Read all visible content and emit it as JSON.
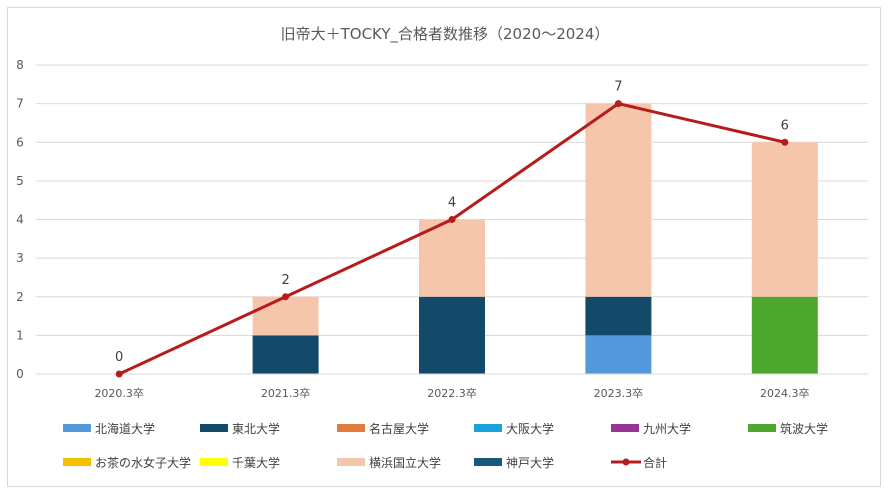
{
  "chart_data": {
    "type": "bar",
    "title": "旧帝大＋TOCKY_合格者数推移（2020～2024）",
    "categories": [
      "2020.3卒",
      "2021.3卒",
      "2022.3卒",
      "2023.3卒",
      "2024.3卒"
    ],
    "ylim": [
      0,
      8
    ],
    "yticks": [
      "0",
      "1",
      "2",
      "3",
      "4",
      "5",
      "6",
      "7",
      "8"
    ],
    "grid": true,
    "legend_position": "bottom",
    "series": [
      {
        "name": "北海道大学",
        "color": "#5599dd",
        "values": [
          0,
          0,
          0,
          1,
          0
        ]
      },
      {
        "name": "東北大学",
        "color": "#134a6a",
        "values": [
          0,
          1,
          2,
          1,
          0
        ]
      },
      {
        "name": "名古屋大学",
        "color": "#e37b3a",
        "values": [
          0,
          0,
          0,
          0,
          0
        ]
      },
      {
        "name": "大阪大学",
        "color": "#1ba1dd",
        "values": [
          0,
          0,
          0,
          0,
          0
        ]
      },
      {
        "name": "九州大学",
        "color": "#973596",
        "values": [
          0,
          0,
          0,
          0,
          0
        ]
      },
      {
        "name": "筑波大学",
        "color": "#4ea72e",
        "values": [
          0,
          0,
          0,
          0,
          2
        ]
      },
      {
        "name": "お茶の水女子大学",
        "color": "#f6c000",
        "values": [
          0,
          0,
          0,
          0,
          0
        ]
      },
      {
        "name": "千葉大学",
        "color": "#ffff00",
        "values": [
          0,
          0,
          0,
          0,
          0
        ]
      },
      {
        "name": "横浜国立大学",
        "color": "#f6c6ac",
        "values": [
          0,
          1,
          2,
          5,
          4
        ]
      },
      {
        "name": "神戸大学",
        "color": "#1a5a78",
        "values": [
          0,
          0,
          0,
          0,
          0
        ]
      }
    ],
    "line": {
      "name": "合計",
      "color": "#b71c1c",
      "values": [
        0,
        2,
        4,
        7,
        6
      ],
      "labels": [
        "0",
        "2",
        "4",
        "7",
        "6"
      ]
    }
  }
}
